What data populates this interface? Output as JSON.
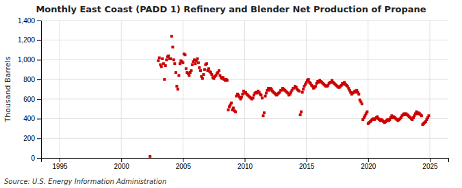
{
  "chart_data": {
    "type": "scatter",
    "title": "Monthly East Coast (PADD 1) Refinery and Blender Net Production of Propane",
    "ylabel": "Thousand Barrels",
    "annotations": [
      "Source: U.S. Energy Information Administration"
    ],
    "color": "#cc0000",
    "marker": "square",
    "grid": true,
    "xlim": [
      1993.5,
      2026.5
    ],
    "ylim": [
      0,
      1400
    ],
    "xticks": [
      1995,
      2000,
      2005,
      2010,
      2015,
      2020,
      2025
    ],
    "yticks": [
      0,
      200,
      400,
      600,
      800,
      {
        "value": 1000,
        "label": "1,000"
      },
      {
        "value": 1200,
        "label": "1,200"
      },
      {
        "value": 1400,
        "label": "1,400"
      }
    ],
    "x": [
      2002.33,
      2003.0,
      2003.08,
      2003.17,
      2003.25,
      2003.33,
      2003.42,
      2003.5,
      2003.58,
      2003.67,
      2003.75,
      2003.83,
      2003.92,
      2004.0,
      2004.08,
      2004.17,
      2004.25,
      2004.33,
      2004.42,
      2004.5,
      2004.58,
      2004.67,
      2004.75,
      2004.83,
      2004.92,
      2005.0,
      2005.08,
      2005.17,
      2005.25,
      2005.33,
      2005.42,
      2005.5,
      2005.58,
      2005.67,
      2005.75,
      2005.83,
      2005.92,
      2006.0,
      2006.08,
      2006.17,
      2006.25,
      2006.33,
      2006.42,
      2006.5,
      2006.58,
      2006.67,
      2006.75,
      2006.83,
      2006.92,
      2007.0,
      2007.08,
      2007.17,
      2007.25,
      2007.33,
      2007.42,
      2007.5,
      2007.58,
      2007.67,
      2007.75,
      2007.83,
      2007.92,
      2008.0,
      2008.08,
      2008.17,
      2008.25,
      2008.33,
      2008.42,
      2008.5,
      2008.58,
      2008.67,
      2008.75,
      2008.83,
      2008.92,
      2009.0,
      2009.08,
      2009.17,
      2009.25,
      2009.33,
      2009.42,
      2009.5,
      2009.58,
      2009.67,
      2009.75,
      2009.83,
      2009.92,
      2010.0,
      2010.08,
      2010.17,
      2010.25,
      2010.33,
      2010.42,
      2010.5,
      2010.58,
      2010.67,
      2010.75,
      2010.83,
      2010.92,
      2011.0,
      2011.08,
      2011.17,
      2011.25,
      2011.33,
      2011.42,
      2011.5,
      2011.58,
      2011.67,
      2011.75,
      2011.83,
      2011.92,
      2012.0,
      2012.08,
      2012.17,
      2012.25,
      2012.33,
      2012.42,
      2012.5,
      2012.58,
      2012.67,
      2012.75,
      2012.83,
      2012.92,
      2013.0,
      2013.08,
      2013.17,
      2013.25,
      2013.33,
      2013.42,
      2013.5,
      2013.58,
      2013.67,
      2013.75,
      2013.83,
      2013.92,
      2014.0,
      2014.08,
      2014.17,
      2014.25,
      2014.33,
      2014.42,
      2014.5,
      2014.58,
      2014.67,
      2014.75,
      2014.83,
      2014.92,
      2015.0,
      2015.08,
      2015.17,
      2015.25,
      2015.33,
      2015.42,
      2015.5,
      2015.58,
      2015.67,
      2015.75,
      2015.83,
      2015.92,
      2016.0,
      2016.08,
      2016.17,
      2016.25,
      2016.33,
      2016.42,
      2016.5,
      2016.58,
      2016.67,
      2016.75,
      2016.83,
      2016.92,
      2017.0,
      2017.08,
      2017.17,
      2017.25,
      2017.33,
      2017.42,
      2017.5,
      2017.58,
      2017.67,
      2017.75,
      2017.83,
      2017.92,
      2018.0,
      2018.08,
      2018.17,
      2018.25,
      2018.33,
      2018.42,
      2018.5,
      2018.58,
      2018.67,
      2018.75,
      2018.83,
      2018.92,
      2019.0,
      2019.08,
      2019.17,
      2019.25,
      2019.33,
      2019.42,
      2019.5,
      2019.58,
      2019.67,
      2019.75,
      2019.83,
      2019.92,
      2020.0,
      2020.08,
      2020.17,
      2020.25,
      2020.33,
      2020.42,
      2020.5,
      2020.58,
      2020.67,
      2020.75,
      2020.83,
      2020.92,
      2021.0,
      2021.08,
      2021.17,
      2021.25,
      2021.33,
      2021.42,
      2021.5,
      2021.58,
      2021.67,
      2021.75,
      2021.83,
      2021.92,
      2022.0,
      2022.08,
      2022.17,
      2022.25,
      2022.33,
      2022.42,
      2022.5,
      2022.58,
      2022.67,
      2022.75,
      2022.83,
      2022.92,
      2023.0,
      2023.08,
      2023.17,
      2023.25,
      2023.33,
      2023.42,
      2023.5,
      2023.58,
      2023.67,
      2023.75,
      2023.83,
      2023.92,
      2024.0,
      2024.08,
      2024.17,
      2024.25,
      2024.33,
      2024.42,
      2024.5,
      2024.58,
      2024.67,
      2024.75,
      2024.83,
      2024.92
    ],
    "values": [
      15,
      990,
      1020,
      950,
      930,
      1010,
      960,
      800,
      940,
      1000,
      1030,
      1040,
      1010,
      1010,
      1240,
      1130,
      1000,
      960,
      870,
      730,
      700,
      840,
      960,
      990,
      980,
      970,
      1060,
      1050,
      910,
      870,
      860,
      840,
      870,
      890,
      950,
      980,
      1000,
      960,
      990,
      1010,
      970,
      920,
      890,
      830,
      810,
      850,
      900,
      950,
      960,
      890,
      910,
      880,
      870,
      850,
      820,
      810,
      830,
      840,
      860,
      870,
      890,
      840,
      820,
      810,
      820,
      800,
      790,
      800,
      790,
      490,
      520,
      540,
      560,
      490,
      510,
      480,
      470,
      630,
      650,
      640,
      620,
      600,
      620,
      650,
      680,
      660,
      670,
      650,
      640,
      630,
      620,
      610,
      600,
      610,
      640,
      660,
      670,
      660,
      680,
      670,
      650,
      640,
      610,
      430,
      460,
      630,
      660,
      690,
      710,
      690,
      710,
      700,
      680,
      670,
      660,
      650,
      640,
      650,
      660,
      670,
      690,
      690,
      710,
      700,
      690,
      680,
      670,
      660,
      640,
      650,
      670,
      690,
      710,
      710,
      730,
      720,
      700,
      690,
      680,
      440,
      470,
      670,
      700,
      730,
      750,
      770,
      790,
      800,
      770,
      760,
      740,
      730,
      710,
      720,
      730,
      760,
      780,
      770,
      790,
      780,
      770,
      760,
      750,
      740,
      730,
      730,
      740,
      760,
      770,
      770,
      790,
      770,
      760,
      750,
      740,
      730,
      720,
      720,
      730,
      740,
      760,
      750,
      770,
      750,
      740,
      730,
      710,
      690,
      670,
      650,
      660,
      670,
      680,
      670,
      690,
      670,
      650,
      590,
      570,
      550,
      390,
      410,
      430,
      450,
      470,
      350,
      360,
      370,
      380,
      390,
      400,
      390,
      400,
      410,
      420,
      400,
      390,
      380,
      390,
      380,
      370,
      360,
      370,
      380,
      390,
      380,
      390,
      410,
      430,
      410,
      420,
      410,
      400,
      390,
      380,
      390,
      400,
      410,
      430,
      440,
      450,
      440,
      450,
      440,
      430,
      420,
      410,
      400,
      390,
      410,
      430,
      450,
      470,
      450,
      460,
      450,
      440,
      430,
      340,
      350,
      360,
      370,
      390,
      410,
      430
    ]
  }
}
